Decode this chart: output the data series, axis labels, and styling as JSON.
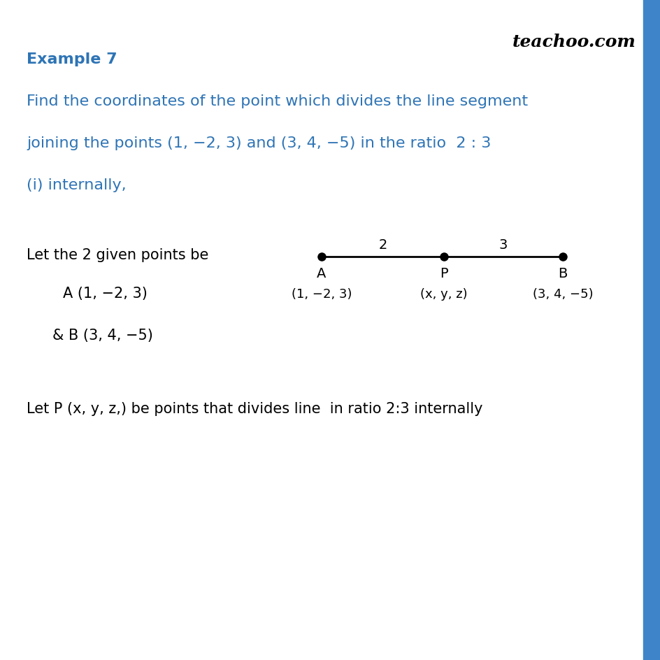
{
  "bg_color": "#ffffff",
  "right_stripe_color": "#3d85c8",
  "title": "Example 7",
  "title_color": "#2e74b5",
  "title_fontsize": 16,
  "watermark": "teachoo.com",
  "watermark_color": "#000000",
  "watermark_fontsize": 18,
  "question_color": "#2e74b5",
  "question_fontsize": 16,
  "question_line1": "Find the coordinates of the point which divides the line segment",
  "question_line2": "joining the points (1, −2, 3) and (3, 4, −5) in the ratio  2 : 3",
  "question_line3": "(i) internally,",
  "body_color": "#000000",
  "body_fontsize": 15,
  "let_text": "Let the 2 given points be",
  "point_A": "A (1, −2, 3)",
  "point_B": "& B (3, 4, −5)",
  "last_line": "Let P (x, y, z,) be points that divides line  in ratio 2:3 internally",
  "coord_A": "(1, −2, 3)",
  "coord_P": "(x, y, z)",
  "coord_B": "(3, 4, −5)"
}
